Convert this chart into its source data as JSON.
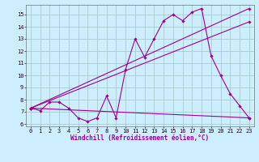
{
  "bg_color": "#cceeff",
  "grid_color": "#aacccc",
  "line_color": "#990099",
  "xlabel": "Windchill (Refroidissement éolien,°C)",
  "xlim": [
    -0.5,
    23.5
  ],
  "ylim": [
    5.8,
    15.8
  ],
  "yticks": [
    6,
    7,
    8,
    9,
    10,
    11,
    12,
    13,
    14,
    15
  ],
  "xticks": [
    0,
    1,
    2,
    3,
    4,
    5,
    6,
    7,
    8,
    9,
    10,
    11,
    12,
    13,
    14,
    15,
    16,
    17,
    18,
    19,
    20,
    21,
    22,
    23
  ],
  "series_zigzag": {
    "x": [
      0,
      1,
      2,
      3,
      4,
      5,
      6,
      7,
      8,
      9,
      10,
      11,
      12,
      13,
      14,
      15,
      16,
      17,
      18,
      19,
      20,
      21,
      22,
      23
    ],
    "y": [
      7.3,
      7.1,
      7.8,
      7.8,
      7.3,
      6.5,
      6.2,
      6.5,
      8.3,
      6.5,
      10.5,
      13.0,
      11.5,
      13.0,
      14.5,
      15.0,
      14.5,
      15.2,
      15.5,
      11.6,
      10.0,
      8.5,
      7.5,
      6.5
    ]
  },
  "series_line1": {
    "x": [
      0,
      23
    ],
    "y": [
      7.3,
      15.5
    ]
  },
  "series_line2": {
    "x": [
      0,
      23
    ],
    "y": [
      7.3,
      14.4
    ]
  },
  "series_flat": {
    "x": [
      0,
      23
    ],
    "y": [
      7.3,
      6.5
    ]
  },
  "tick_fontsize": 5.0,
  "xlabel_fontsize": 5.5,
  "lw": 0.8,
  "marker_size": 1.8
}
